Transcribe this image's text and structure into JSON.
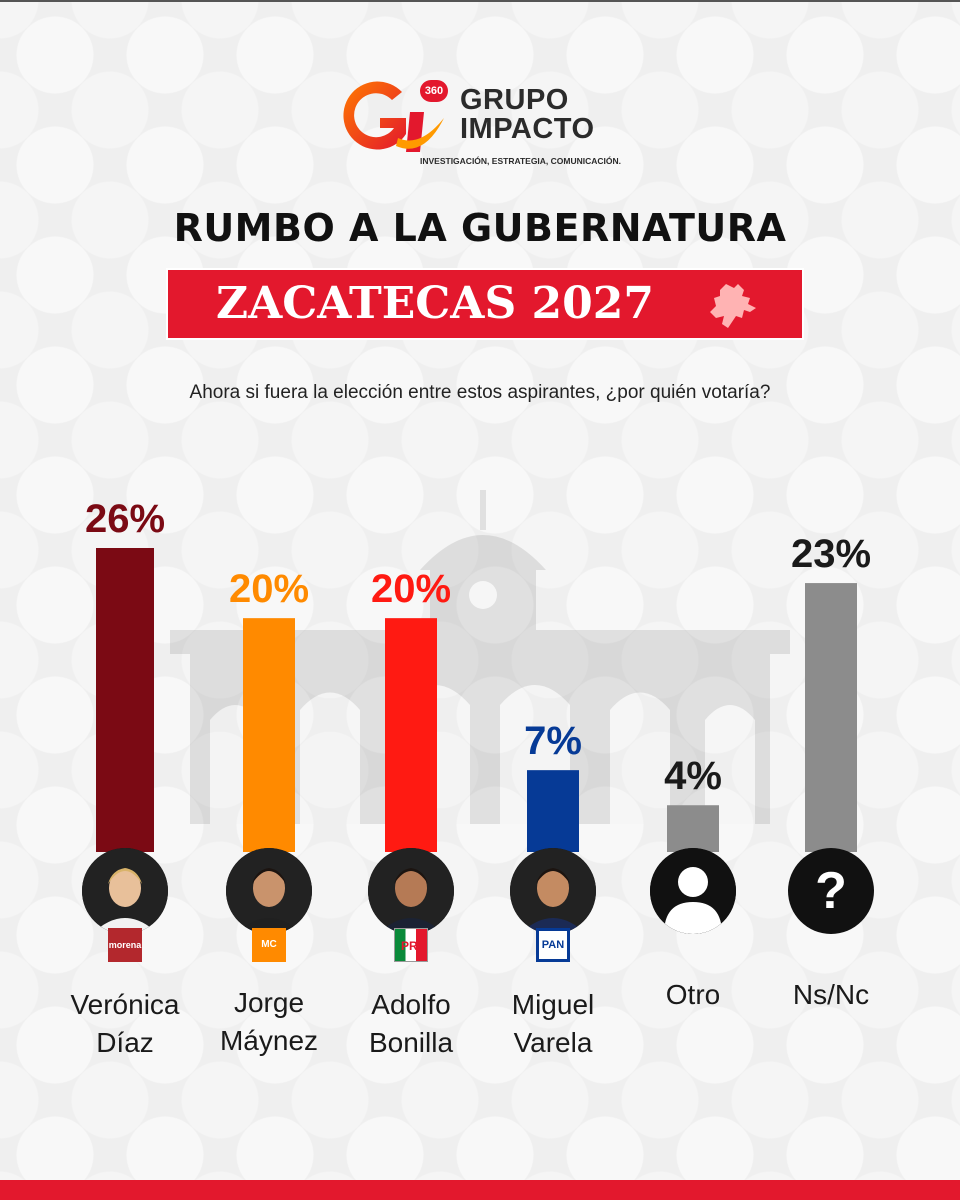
{
  "brand": {
    "monogram": "Gi",
    "badge": "360",
    "name_line1": "GRUPO",
    "name_line2": "IMPACTO",
    "tagline": "INVESTIGACIÓN, ESTRATEGIA, COMUNICACIÓN."
  },
  "header": {
    "title": "RUMBO A LA GUBERNATURA",
    "subtitle": "ZACATECAS 2027",
    "question": "Ahora si fuera la elección entre estos aspirantes, ¿por quién votaría?"
  },
  "colors": {
    "accent": "#e3182d",
    "morena": "#7b0a14",
    "mc": "#ff8a00",
    "pri": "#ff1a12",
    "pan": "#063a96",
    "gray": "#8c8c8c"
  },
  "chart_data": {
    "type": "bar",
    "categories": [
      "Verónica Díaz",
      "Jorge Máynez",
      "Adolfo Bonilla",
      "Miguel Varela",
      "Otro",
      "Ns/Nc"
    ],
    "values": [
      26,
      20,
      20,
      7,
      4,
      23
    ],
    "labels": [
      "26%",
      "20%",
      "20%",
      "7%",
      "4%",
      "23%"
    ],
    "unit": "%",
    "ylim": [
      0,
      26
    ],
    "grid": false,
    "legend": "none",
    "bar_colors": [
      "#7b0a14",
      "#ff8a00",
      "#ff1a12",
      "#063a96",
      "#8c8c8c",
      "#8c8c8c"
    ],
    "label_colors": [
      "#7b0a14",
      "#ff8a00",
      "#ff1a12",
      "#063a96",
      "#1a1a1a",
      "#1a1a1a"
    ]
  },
  "candidates": [
    {
      "line1": "Verónica",
      "line2": "Díaz",
      "party": "morena",
      "avatar_icon": "person-photo-icon"
    },
    {
      "line1": "Jorge",
      "line2": "Máynez",
      "party": "MC",
      "avatar_icon": "person-photo-icon"
    },
    {
      "line1": "Adolfo",
      "line2": "Bonilla",
      "party": "PRI",
      "avatar_icon": "person-photo-icon"
    },
    {
      "line1": "Miguel",
      "line2": "Varela",
      "party": "PAN",
      "avatar_icon": "person-photo-icon"
    },
    {
      "line1": "Otro",
      "line2": "",
      "party": "",
      "avatar_icon": "silhouette-icon"
    },
    {
      "line1": "Ns/Nc",
      "line2": "",
      "party": "",
      "avatar_icon": "question-mark-icon"
    }
  ],
  "question_mark": "?"
}
